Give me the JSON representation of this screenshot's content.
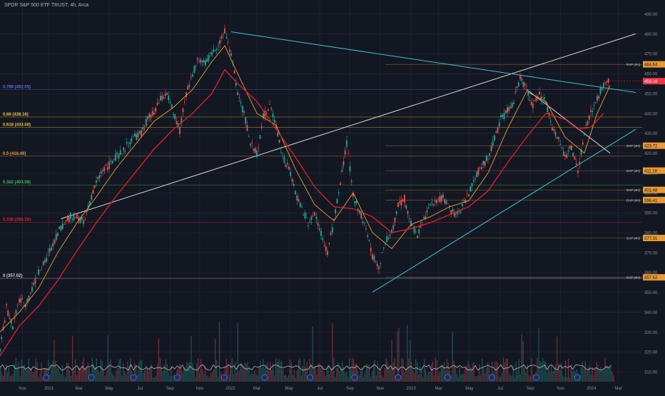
{
  "header": {
    "title": "SPDR S&P 500 ETF TRUST, 4h, Arca"
  },
  "colors": {
    "background": "#131722",
    "grid": "#1e2230",
    "price_up": "#26a69a",
    "price_down": "#ef5350",
    "ma_fast": "#e9a03b",
    "ma_slow": "#e0212e",
    "trend_white": "#d6d6d6",
    "trend_cyan": "#3cc3cf",
    "volume_avg": "#c8c8c8"
  },
  "chart_data": {
    "type": "line",
    "title": "SPDR S&P 500 ETF TRUST, 4h, Arca",
    "ylim": [
      305,
      497
    ],
    "xlim": [
      0,
      100
    ],
    "y_ticks": [
      490,
      480,
      470,
      460,
      450,
      440,
      430,
      420,
      410,
      400,
      390,
      380,
      370,
      360,
      350,
      340,
      330,
      320,
      310
    ],
    "x_ticks": [
      {
        "label": "Nov",
        "x": 3.5
      },
      {
        "label": "2021",
        "x": 7.6
      },
      {
        "label": "Mar",
        "x": 12.3
      },
      {
        "label": "May",
        "x": 17.0
      },
      {
        "label": "Jul",
        "x": 21.8
      },
      {
        "label": "Sep",
        "x": 26.5
      },
      {
        "label": "Nov",
        "x": 31.1
      },
      {
        "label": "2022",
        "x": 35.9
      },
      {
        "label": "Mar",
        "x": 40.0
      },
      {
        "label": "May",
        "x": 45.0
      },
      {
        "label": "Jul",
        "x": 49.8
      },
      {
        "label": "Sep",
        "x": 54.5
      },
      {
        "label": "Nov",
        "x": 59.2
      },
      {
        "label": "2023",
        "x": 64.0
      },
      {
        "label": "Mar",
        "x": 68.3
      },
      {
        "label": "May",
        "x": 73.1
      },
      {
        "label": "Jul",
        "x": 77.9
      },
      {
        "label": "Sep",
        "x": 82.6
      },
      {
        "label": "Nov",
        "x": 87.3
      },
      {
        "label": "2024",
        "x": 92.1
      },
      {
        "label": "Mar",
        "x": 96.3
      }
    ],
    "series": [
      {
        "name": "price",
        "points": [
          [
            0,
            320
          ],
          [
            1,
            342
          ],
          [
            2,
            333
          ],
          [
            3,
            346
          ],
          [
            4,
            344
          ],
          [
            5,
            352
          ],
          [
            6,
            360
          ],
          [
            7,
            365
          ],
          [
            8,
            373
          ],
          [
            9,
            380
          ],
          [
            10,
            385
          ],
          [
            11,
            388
          ],
          [
            12,
            388
          ],
          [
            13,
            385
          ],
          [
            14,
            395
          ],
          [
            15,
            405
          ],
          [
            16,
            412
          ],
          [
            17,
            414
          ],
          [
            18,
            418
          ],
          [
            19,
            420
          ],
          [
            20,
            425
          ],
          [
            21,
            428
          ],
          [
            22,
            430
          ],
          [
            23,
            437
          ],
          [
            24,
            440
          ],
          [
            25,
            447
          ],
          [
            26,
            450
          ],
          [
            27,
            440
          ],
          [
            28,
            431
          ],
          [
            29,
            450
          ],
          [
            30,
            460
          ],
          [
            31,
            468
          ],
          [
            32,
            465
          ],
          [
            33,
            470
          ],
          [
            34,
            475
          ],
          [
            35,
            481
          ],
          [
            36,
            470
          ],
          [
            37,
            450
          ],
          [
            38,
            440
          ],
          [
            39,
            425
          ],
          [
            40,
            420
          ],
          [
            41,
            438
          ],
          [
            42,
            444
          ],
          [
            43,
            434
          ],
          [
            44,
            418
          ],
          [
            45,
            412
          ],
          [
            46,
            400
          ],
          [
            47,
            392
          ],
          [
            48,
            385
          ],
          [
            49,
            390
          ],
          [
            50,
            380
          ],
          [
            51,
            370
          ],
          [
            52,
            386
          ],
          [
            53,
            405
          ],
          [
            54,
            425
          ],
          [
            55,
            398
          ],
          [
            56,
            391
          ],
          [
            57,
            382
          ],
          [
            58,
            368
          ],
          [
            59,
            363
          ],
          [
            60,
            375
          ],
          [
            61,
            380
          ],
          [
            62,
            394
          ],
          [
            63,
            397
          ],
          [
            64,
            384
          ],
          [
            65,
            379
          ],
          [
            66,
            387
          ],
          [
            67,
            393
          ],
          [
            68,
            396
          ],
          [
            69,
            398
          ],
          [
            70,
            392
          ],
          [
            71,
            388
          ],
          [
            72,
            393
          ],
          [
            73,
            400
          ],
          [
            74,
            408
          ],
          [
            75,
            413
          ],
          [
            76,
            418
          ],
          [
            77,
            427
          ],
          [
            78,
            437
          ],
          [
            79,
            441
          ],
          [
            80,
            446
          ],
          [
            81,
            458
          ],
          [
            82,
            452
          ],
          [
            83,
            444
          ],
          [
            84,
            449
          ],
          [
            85,
            446
          ],
          [
            86,
            432
          ],
          [
            87,
            428
          ],
          [
            88,
            418
          ],
          [
            89,
            423
          ],
          [
            90,
            410
          ],
          [
            91,
            430
          ],
          [
            92,
            440
          ],
          [
            93,
            448
          ],
          [
            94,
            454
          ],
          [
            95,
            458
          ]
        ]
      },
      {
        "name": "ma_fast",
        "points": [
          [
            0,
            330
          ],
          [
            3,
            340
          ],
          [
            6,
            352
          ],
          [
            9,
            370
          ],
          [
            12,
            385
          ],
          [
            15,
            398
          ],
          [
            18,
            412
          ],
          [
            21,
            424
          ],
          [
            24,
            436
          ],
          [
            27,
            443
          ],
          [
            30,
            452
          ],
          [
            33,
            466
          ],
          [
            35,
            474
          ],
          [
            37,
            460
          ],
          [
            40,
            440
          ],
          [
            43,
            434
          ],
          [
            46,
            412
          ],
          [
            49,
            394
          ],
          [
            52,
            386
          ],
          [
            55,
            400
          ],
          [
            58,
            380
          ],
          [
            61,
            372
          ],
          [
            64,
            384
          ],
          [
            67,
            388
          ],
          [
            70,
            393
          ],
          [
            73,
            396
          ],
          [
            76,
            410
          ],
          [
            79,
            432
          ],
          [
            82,
            451
          ],
          [
            85,
            446
          ],
          [
            88,
            428
          ],
          [
            91,
            420
          ],
          [
            93,
            440
          ],
          [
            95,
            454
          ]
        ]
      },
      {
        "name": "ma_slow",
        "points": [
          [
            0,
            318
          ],
          [
            3,
            333
          ],
          [
            6,
            343
          ],
          [
            9,
            356
          ],
          [
            12,
            371
          ],
          [
            15,
            385
          ],
          [
            18,
            398
          ],
          [
            21,
            410
          ],
          [
            24,
            422
          ],
          [
            27,
            432
          ],
          [
            30,
            440
          ],
          [
            33,
            450
          ],
          [
            35,
            462
          ],
          [
            37,
            455
          ],
          [
            40,
            446
          ],
          [
            43,
            432
          ],
          [
            46,
            418
          ],
          [
            49,
            403
          ],
          [
            52,
            393
          ],
          [
            55,
            392
          ],
          [
            58,
            388
          ],
          [
            61,
            380
          ],
          [
            64,
            382
          ],
          [
            67,
            385
          ],
          [
            70,
            389
          ],
          [
            73,
            393
          ],
          [
            76,
            401
          ],
          [
            79,
            415
          ],
          [
            82,
            428
          ],
          [
            85,
            440
          ],
          [
            88,
            437
          ],
          [
            90,
            432
          ],
          [
            92,
            433
          ],
          [
            94,
            440
          ]
        ]
      }
    ],
    "levels": [
      {
        "label": "0.786 (452.05)",
        "value": 452.05,
        "color": "#5b6ee1"
      },
      {
        "label": "0.66 (438.16)",
        "value": 438.16,
        "color": "#f0c23b"
      },
      {
        "label": "0.618 (433.00)",
        "value": 433.0,
        "color": "#f0c23b"
      },
      {
        "label": "0.5 (418.49)",
        "value": 418.49,
        "color": "#e89a32"
      },
      {
        "label": "0.382 (403.98)",
        "value": 403.98,
        "color": "#3fb950"
      },
      {
        "label": "0.236 (385.20)",
        "value": 385.2,
        "color": "#e0212e"
      },
      {
        "label": "0 (357.02)",
        "value": 357.02,
        "color": "#d1d4dc"
      }
    ],
    "gaps": [
      {
        "label": "GAP (4H)",
        "value": 464.64,
        "price_label": "464.64",
        "color": "#e89a32"
      },
      {
        "label": "GAP (4H)",
        "value": 423.72,
        "price_label": "423.72",
        "color": "#e89a32"
      },
      {
        "label": "GAP (4H)",
        "value": 411.18,
        "price_label": "411.18",
        "color": "#e89a32"
      },
      {
        "label": "GAP (4H)",
        "value": 401.48,
        "price_label": "401.48",
        "color": "#e89a32"
      },
      {
        "label": "GAP (4H)",
        "value": 396.41,
        "price_label": "396.41",
        "color": "#e89a32"
      },
      {
        "label": "GAP (4H)",
        "value": 377.31,
        "price_label": "377.31",
        "color": "#e89a32"
      },
      {
        "label": "GAP (4H)",
        "value": 357.52,
        "price_label": "357.52",
        "color": "#e89a32"
      }
    ],
    "current_price": {
      "value": 456.18,
      "label": "456.18",
      "color": "#f23645"
    },
    "trendlines": [
      {
        "name": "white-rising",
        "x1": 9.5,
        "y1": 387,
        "x2": 99,
        "y2": 480,
        "color": "#d6d6d6"
      },
      {
        "name": "cyan-descending",
        "x1": 36,
        "y1": 481,
        "x2": 99,
        "y2": 450.5,
        "color": "#3cc3cf"
      },
      {
        "name": "cyan-rising",
        "x1": 58,
        "y1": 350,
        "x2": 99,
        "y2": 432,
        "color": "#3cc3cf"
      },
      {
        "name": "white-falling",
        "x1": 82,
        "y1": 452,
        "x2": 95,
        "y2": 420,
        "color": "#d6d6d6"
      }
    ],
    "volume_markers": [
      7.2,
      14.2,
      20.8,
      27.6,
      34.9,
      41.2,
      48.3,
      55.2,
      62.0,
      69.7,
      76.6,
      83.5,
      89.9
    ],
    "grid": true
  }
}
